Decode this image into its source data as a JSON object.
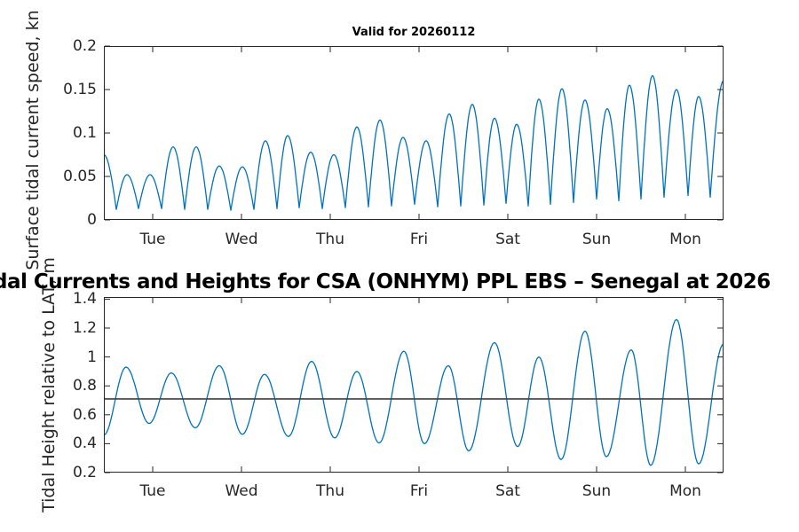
{
  "colors": {
    "background": "#ffffff",
    "line": "#0072BD",
    "axis": "#262626",
    "tick_text": "#262626",
    "title_text": "#000000",
    "reference_line": "#3f3f3f"
  },
  "labels": {
    "top_title": "Valid for 20260112",
    "main_title": "dal Currents and Heights for CSA (ONHYM) PPL EBS  – Senegal at 2026",
    "top_ylabel": "Surface tidal current speed, kn",
    "bottom_ylabel": "Tidal Height relative to LAT, m"
  },
  "chart_data": [
    {
      "type": "line",
      "subplot": "top",
      "title": "Valid for 20260112",
      "ylabel": "Surface tidal current speed, kn",
      "xlabel": "",
      "xlim": [
        0,
        6.98
      ],
      "ylim": [
        0,
        0.2
      ],
      "yticks": [
        0,
        0.05,
        0.1,
        0.15,
        0.2
      ],
      "xtick_labels": [
        "Tue",
        "Wed",
        "Thu",
        "Fri",
        "Sat",
        "Sun",
        "Mon"
      ],
      "xtick_positions": [
        0.55,
        1.55,
        2.55,
        3.55,
        4.55,
        5.55,
        6.55
      ],
      "grid": false,
      "legend": "none",
      "line_color": "#0072BD",
      "curve_shape": "cusped_minima",
      "extrema": [
        [
          0.0,
          0.075
        ],
        [
          0.14,
          0.012
        ],
        [
          0.26,
          0.052
        ],
        [
          0.39,
          0.013
        ],
        [
          0.52,
          0.052
        ],
        [
          0.65,
          0.013
        ],
        [
          0.78,
          0.084
        ],
        [
          0.91,
          0.012
        ],
        [
          1.04,
          0.084
        ],
        [
          1.17,
          0.012
        ],
        [
          1.3,
          0.062
        ],
        [
          1.43,
          0.011
        ],
        [
          1.56,
          0.061
        ],
        [
          1.69,
          0.012
        ],
        [
          1.82,
          0.091
        ],
        [
          1.95,
          0.013
        ],
        [
          2.07,
          0.097
        ],
        [
          2.2,
          0.014
        ],
        [
          2.33,
          0.078
        ],
        [
          2.46,
          0.013
        ],
        [
          2.59,
          0.075
        ],
        [
          2.72,
          0.014
        ],
        [
          2.85,
          0.107
        ],
        [
          2.98,
          0.015
        ],
        [
          3.11,
          0.115
        ],
        [
          3.24,
          0.016
        ],
        [
          3.37,
          0.095
        ],
        [
          3.5,
          0.018
        ],
        [
          3.63,
          0.091
        ],
        [
          3.76,
          0.015
        ],
        [
          3.89,
          0.122
        ],
        [
          4.02,
          0.016
        ],
        [
          4.15,
          0.133
        ],
        [
          4.28,
          0.017
        ],
        [
          4.4,
          0.117
        ],
        [
          4.53,
          0.019
        ],
        [
          4.65,
          0.11
        ],
        [
          4.78,
          0.016
        ],
        [
          4.9,
          0.139
        ],
        [
          5.03,
          0.018
        ],
        [
          5.16,
          0.151
        ],
        [
          5.29,
          0.02
        ],
        [
          5.42,
          0.138
        ],
        [
          5.55,
          0.024
        ],
        [
          5.67,
          0.128
        ],
        [
          5.8,
          0.022
        ],
        [
          5.92,
          0.155
        ],
        [
          6.05,
          0.024
        ],
        [
          6.18,
          0.166
        ],
        [
          6.31,
          0.026
        ],
        [
          6.45,
          0.15
        ],
        [
          6.58,
          0.028
        ],
        [
          6.7,
          0.142
        ],
        [
          6.83,
          0.026
        ],
        [
          6.98,
          0.16
        ]
      ]
    },
    {
      "type": "line",
      "subplot": "bottom",
      "title": "",
      "ylabel": "Tidal Height relative to LAT, m",
      "xlabel": "",
      "xlim": [
        0,
        6.98
      ],
      "ylim": [
        0.2,
        1.415
      ],
      "yticks": [
        0.2,
        0.4,
        0.6,
        0.8,
        1,
        1.2,
        1.4
      ],
      "xtick_labels": [
        "Tue",
        "Wed",
        "Thu",
        "Fri",
        "Sat",
        "Sun",
        "Mon"
      ],
      "xtick_positions": [
        0.55,
        1.55,
        2.55,
        3.55,
        4.55,
        5.55,
        6.55
      ],
      "grid": false,
      "legend": "none",
      "line_color": "#0072BD",
      "curve_shape": "sinusoidal",
      "reference_line_y": 0.71,
      "reference_line_color": "#3f3f3f",
      "extrema": [
        [
          0.0,
          0.46
        ],
        [
          0.25,
          0.93
        ],
        [
          0.51,
          0.54
        ],
        [
          0.76,
          0.89
        ],
        [
          1.03,
          0.51
        ],
        [
          1.3,
          0.94
        ],
        [
          1.56,
          0.465
        ],
        [
          1.81,
          0.88
        ],
        [
          2.08,
          0.45
        ],
        [
          2.34,
          0.97
        ],
        [
          2.6,
          0.44
        ],
        [
          2.85,
          0.9
        ],
        [
          3.1,
          0.405
        ],
        [
          3.38,
          1.04
        ],
        [
          3.61,
          0.4
        ],
        [
          3.88,
          0.94
        ],
        [
          4.11,
          0.35
        ],
        [
          4.4,
          1.1
        ],
        [
          4.66,
          0.38
        ],
        [
          4.9,
          1.0
        ],
        [
          5.15,
          0.29
        ],
        [
          5.42,
          1.18
        ],
        [
          5.66,
          0.31
        ],
        [
          5.94,
          1.05
        ],
        [
          6.16,
          0.25
        ],
        [
          6.45,
          1.26
        ],
        [
          6.7,
          0.26
        ],
        [
          6.98,
          1.09
        ]
      ]
    }
  ]
}
